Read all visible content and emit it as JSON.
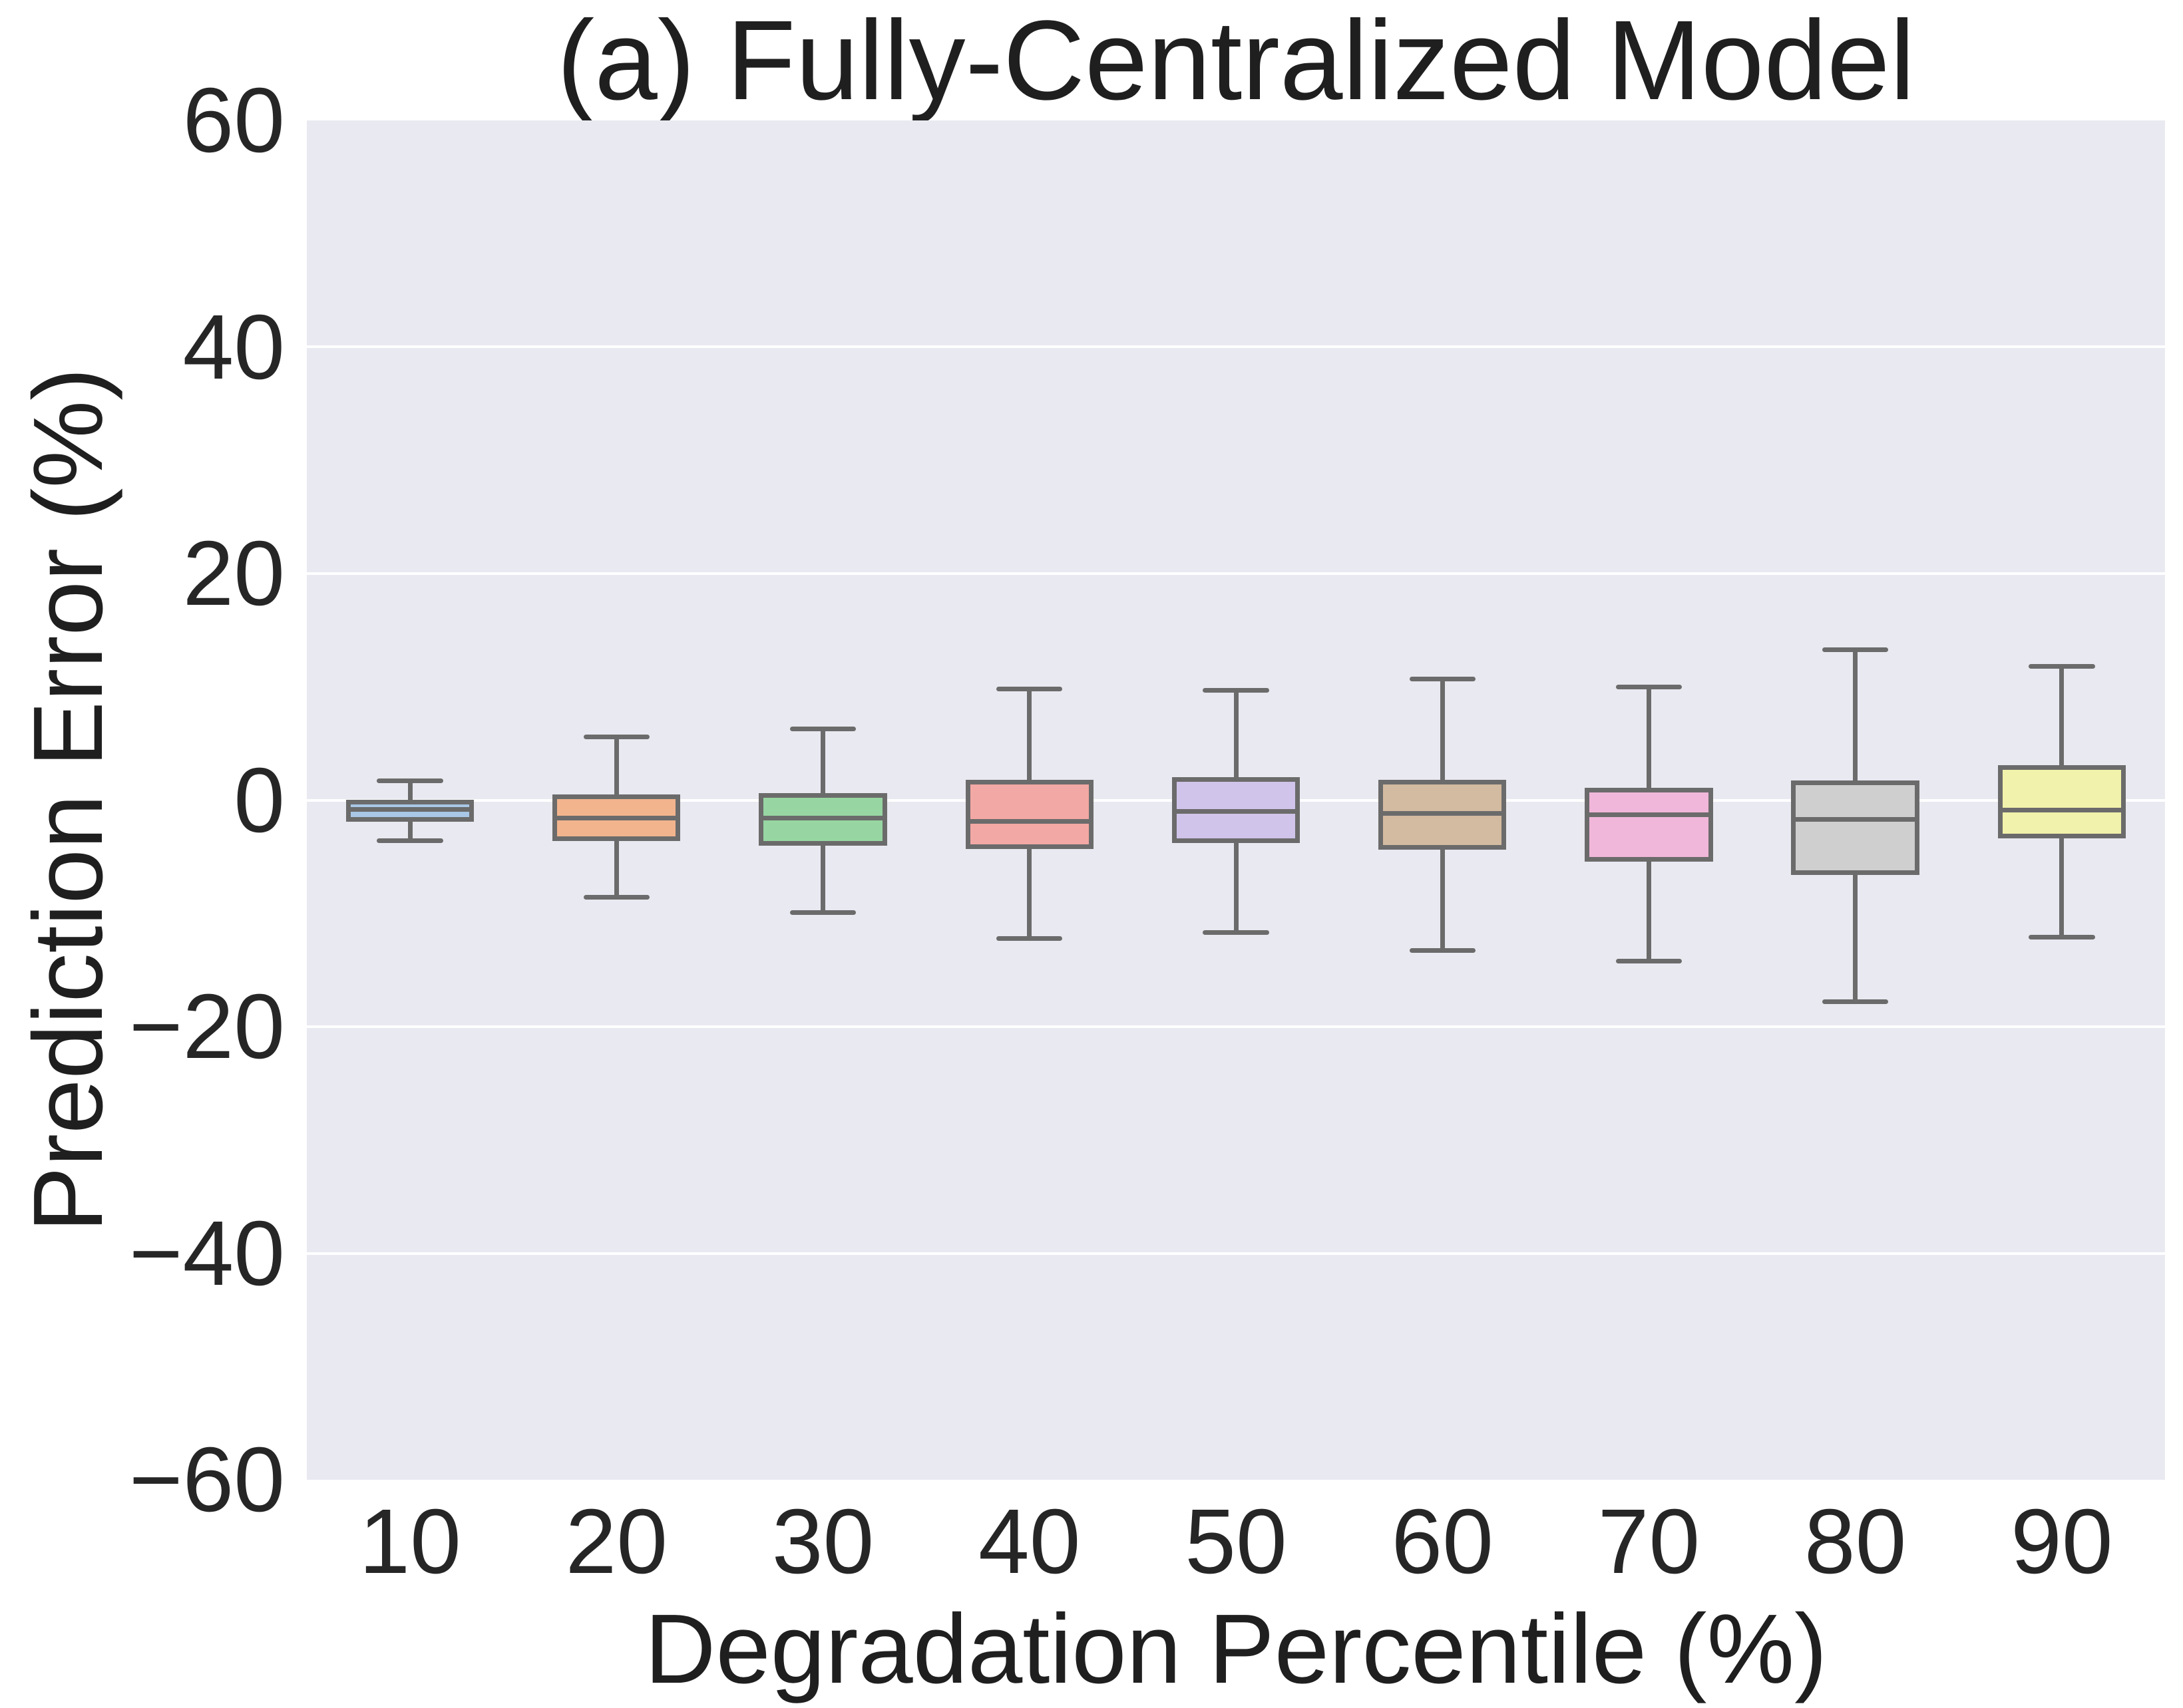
{
  "chart_data": {
    "type": "box",
    "title": "(a) Fully-Centralized Model",
    "xlabel": "Degradation Percentile (%)",
    "ylabel": "Prediction Error (%)",
    "ylim": [
      -60,
      60
    ],
    "grid": true,
    "legend": "none",
    "yticks": [
      {
        "label": "60",
        "value": 60
      },
      {
        "label": "40",
        "value": 40
      },
      {
        "label": "20",
        "value": 20
      },
      {
        "label": "0",
        "value": 0
      },
      {
        "label": "−20",
        "value": -20
      },
      {
        "label": "−40",
        "value": -40
      },
      {
        "label": "−60",
        "value": -60
      }
    ],
    "gridline_values": [
      40,
      20,
      0,
      -20,
      -40
    ],
    "categories": [
      "10",
      "20",
      "30",
      "40",
      "50",
      "60",
      "70",
      "80",
      "90"
    ],
    "boxes": [
      {
        "category": "10",
        "color": "#a9c7e6",
        "whisker_low": -3.6,
        "q1": -1.7,
        "median": -0.8,
        "q3": -0.2,
        "whisker_high": 1.7
      },
      {
        "category": "20",
        "color": "#f2b48d",
        "whisker_low": -8.6,
        "q1": -3.4,
        "median": -1.6,
        "q3": 0.3,
        "whisker_high": 5.6
      },
      {
        "category": "30",
        "color": "#97d6a2",
        "whisker_low": -9.9,
        "q1": -3.8,
        "median": -1.6,
        "q3": 0.4,
        "whisker_high": 6.3
      },
      {
        "category": "40",
        "color": "#f2a8a4",
        "whisker_low": -12.2,
        "q1": -4.1,
        "median": -1.9,
        "q3": 1.6,
        "whisker_high": 9.8
      },
      {
        "category": "50",
        "color": "#d0c4ea",
        "whisker_low": -11.7,
        "q1": -3.6,
        "median": -1.0,
        "q3": 1.8,
        "whisker_high": 9.7
      },
      {
        "category": "60",
        "color": "#d3bba1",
        "whisker_low": -13.3,
        "q1": -4.2,
        "median": -1.2,
        "q3": 1.6,
        "whisker_high": 10.7
      },
      {
        "category": "70",
        "color": "#f0b7da",
        "whisker_low": -14.2,
        "q1": -5.2,
        "median": -1.3,
        "q3": 0.9,
        "whisker_high": 10.0
      },
      {
        "category": "80",
        "color": "#cfcfcf",
        "whisker_low": -17.8,
        "q1": -6.4,
        "median": -1.7,
        "q3": 1.5,
        "whisker_high": 13.3
      },
      {
        "category": "90",
        "color": "#f1f2ab",
        "whisker_low": -12.1,
        "q1": -3.2,
        "median": -0.9,
        "q3": 2.9,
        "whisker_high": 11.8
      }
    ],
    "styles": {
      "plot_background": "#e9e9f1",
      "gridline_color": "#ffffff",
      "box_edge_color": "#6b6b6b",
      "text_color": "#262626",
      "box_width_pct_of_slot": 62,
      "cap_width_pct_of_slot": 32
    }
  }
}
